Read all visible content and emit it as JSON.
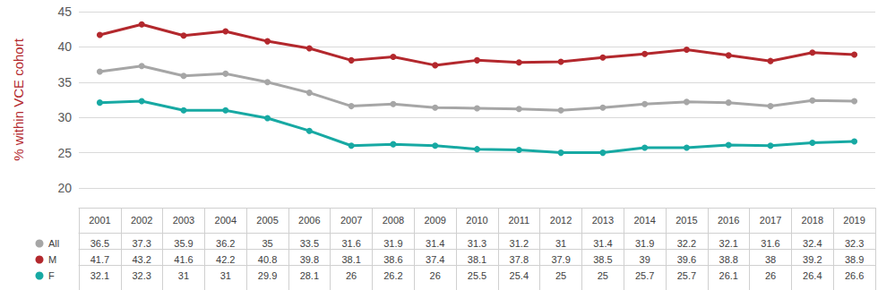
{
  "chart_data": {
    "type": "line",
    "y_label": "% within VCE cohort",
    "categories": [
      "2001",
      "2002",
      "2003",
      "2004",
      "2005",
      "2006",
      "2007",
      "2008",
      "2009",
      "2010",
      "2011",
      "2012",
      "2013",
      "2014",
      "2015",
      "2016",
      "2017",
      "2018",
      "2019"
    ],
    "series": [
      {
        "name": "All",
        "color": "#a6a6a6",
        "values": [
          36.5,
          37.3,
          35.9,
          36.2,
          35,
          33.5,
          31.6,
          31.9,
          31.4,
          31.3,
          31.2,
          31,
          31.4,
          31.9,
          32.2,
          32.1,
          31.6,
          32.4,
          32.3
        ]
      },
      {
        "name": "M",
        "color": "#b3282d",
        "values": [
          41.7,
          43.2,
          41.6,
          42.2,
          40.8,
          39.8,
          38.1,
          38.6,
          37.4,
          38.1,
          37.8,
          37.9,
          38.5,
          39,
          39.6,
          38.8,
          38,
          39.2,
          38.9
        ]
      },
      {
        "name": "F",
        "color": "#17a9a3",
        "values": [
          32.1,
          32.3,
          31,
          31,
          29.9,
          28.1,
          26,
          26.2,
          26,
          25.5,
          25.4,
          25,
          25,
          25.7,
          25.7,
          26.1,
          26,
          26.4,
          26.6
        ]
      }
    ],
    "ylim": [
      20,
      45
    ],
    "yticks": [
      20,
      25,
      30,
      35,
      40,
      45
    ],
    "grid": true,
    "marker": "circle"
  }
}
